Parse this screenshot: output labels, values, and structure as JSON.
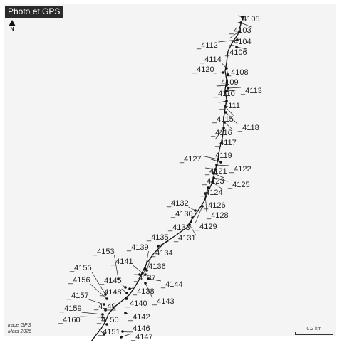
{
  "title": "Photo et GPS",
  "north_label": "N",
  "caption": [
    "trace GPS",
    "Mars 2026"
  ],
  "scale_label": "0.2 km",
  "colors": {
    "background": "#f4f4f4",
    "track": "#111111",
    "badge": "#2b2b2b"
  },
  "points": [
    {
      "label": "_4105"
    },
    {
      "label": "_4103"
    },
    {
      "label": "_4104"
    },
    {
      "label": "_4112"
    },
    {
      "label": "_4106"
    },
    {
      "label": "_4114"
    },
    {
      "label": "_4120"
    },
    {
      "label": "_4108"
    },
    {
      "label": "_4109"
    },
    {
      "label": "_4113"
    },
    {
      "label": "_4110"
    },
    {
      "label": "_4111"
    },
    {
      "label": "_4115"
    },
    {
      "label": "_4118"
    },
    {
      "label": "_4116"
    },
    {
      "label": "_4117"
    },
    {
      "label": "_4127"
    },
    {
      "label": "_4119"
    },
    {
      "label": "_4122"
    },
    {
      "label": "_4121"
    },
    {
      "label": "_4123"
    },
    {
      "label": "_4125"
    },
    {
      "label": "_4124"
    },
    {
      "label": "_4132"
    },
    {
      "label": "_4126"
    },
    {
      "label": "_4130"
    },
    {
      "label": "_4128"
    },
    {
      "label": "_4133"
    },
    {
      "label": "_4129"
    },
    {
      "label": "_4131"
    },
    {
      "label": "_4135"
    },
    {
      "label": "_4139"
    },
    {
      "label": "_4153"
    },
    {
      "label": "_4134"
    },
    {
      "label": "_4141"
    },
    {
      "label": "_4136"
    },
    {
      "label": "_4155"
    },
    {
      "label": "_4137"
    },
    {
      "label": "_4156"
    },
    {
      "label": "_4145"
    },
    {
      "label": "_4144"
    },
    {
      "label": "_4148"
    },
    {
      "label": "_4138"
    },
    {
      "label": "_4157"
    },
    {
      "label": "_4143"
    },
    {
      "label": "_4149"
    },
    {
      "label": "_4140"
    },
    {
      "label": "_4159"
    },
    {
      "label": "_4142"
    },
    {
      "label": "_4160"
    },
    {
      "label": "_4150"
    },
    {
      "label": "_4146"
    },
    {
      "label": "_4151"
    },
    {
      "label": "_4147"
    }
  ]
}
